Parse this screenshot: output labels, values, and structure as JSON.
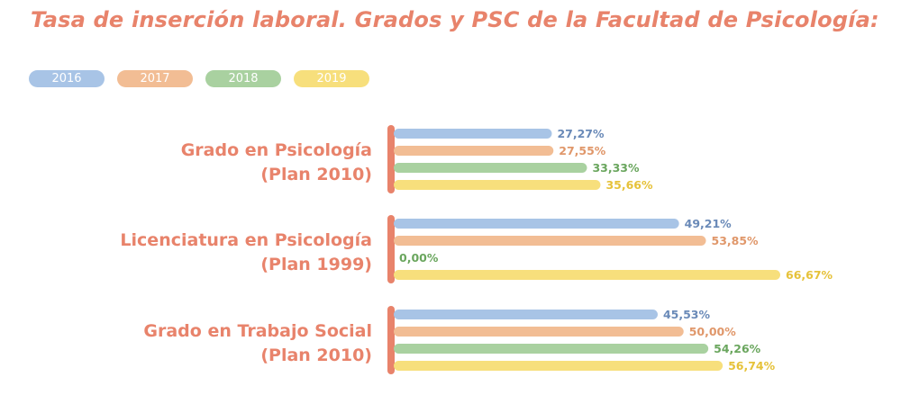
{
  "title": "Tasa de inserción laboral. Grados y PSC de la Facultad de Psicología:",
  "colors": {
    "accent": "#e8836b",
    "series": [
      "#a8c4e6",
      "#f2bd94",
      "#a9d1a0",
      "#f7df7c"
    ],
    "value_text": [
      "#6a8ab8",
      "#e0976a",
      "#6aa65e",
      "#e6c23a"
    ]
  },
  "chart_data": {
    "type": "bar",
    "orientation": "horizontal",
    "title": "Tasa de inserción laboral. Grados y PSC de la Facultad de Psicología:",
    "categories": [
      [
        "Grado en Psicología",
        "(Plan 2010)"
      ],
      [
        "Licenciatura en Psicología",
        "(Plan 1999)"
      ],
      [
        "Grado en Trabajo Social",
        "(Plan 2010)"
      ]
    ],
    "series": [
      {
        "name": "2016",
        "values": [
          27.27,
          49.21,
          45.53
        ],
        "labels": [
          "27,27%",
          "49,21%",
          "45,53%"
        ]
      },
      {
        "name": "2017",
        "values": [
          27.55,
          53.85,
          50.0
        ],
        "labels": [
          "27,55%",
          "53,85%",
          "50,00%"
        ]
      },
      {
        "name": "2018",
        "values": [
          33.33,
          0.0,
          54.26
        ],
        "labels": [
          "33,33%",
          "0,00%",
          "54,26%"
        ]
      },
      {
        "name": "2019",
        "values": [
          35.66,
          66.67,
          56.74
        ],
        "labels": [
          "35,66%",
          "66,67%",
          "56,74%"
        ]
      }
    ],
    "xlim": [
      0,
      66.67
    ],
    "legend_position": "top-left",
    "grid": false
  }
}
